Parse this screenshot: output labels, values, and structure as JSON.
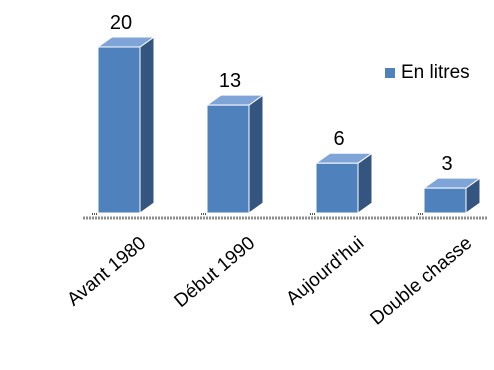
{
  "chart_data": {
    "type": "bar",
    "title": "",
    "xlabel": "",
    "ylabel": "",
    "categories": [
      "Avant 1980",
      "Début 1990",
      "Aujourd'hui",
      "Double chasse"
    ],
    "series": [
      {
        "name": "En litres",
        "values": [
          20,
          13,
          6,
          3
        ]
      }
    ],
    "data_labels": [
      "20",
      "13",
      "6",
      "3"
    ],
    "ylim": [
      0,
      20
    ],
    "grid": false,
    "legend": "right",
    "three_d": true
  },
  "colors": {
    "front": "#4F81BD",
    "side": "#34557F",
    "top": "#7FA5D8",
    "floor": "#8C8C8C"
  }
}
